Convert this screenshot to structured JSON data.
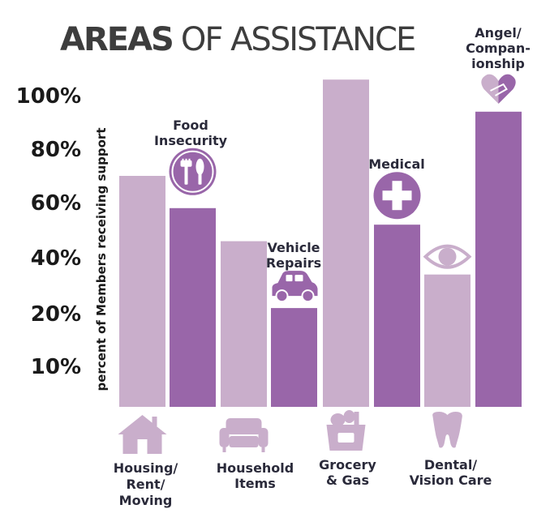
{
  "title": {
    "bold": "AREAS",
    "light": "OF ASSISTANCE"
  },
  "colors": {
    "light": "#c9aecb",
    "dark": "#9966a9",
    "text": "#2a2a3a"
  },
  "chart_data": {
    "type": "bar",
    "ylabel": "percent of Members receiving support",
    "yticks": [
      {
        "label": "10%",
        "value": 10
      },
      {
        "label": "20%",
        "value": 20
      },
      {
        "label": "40%",
        "value": 40
      },
      {
        "label": "60%",
        "value": 60
      },
      {
        "label": "80%",
        "value": 80
      },
      {
        "label": "100%",
        "value": 100
      }
    ],
    "bars": [
      {
        "value": 70,
        "shade": "light"
      },
      {
        "value": 58,
        "shade": "dark"
      },
      {
        "value": 46,
        "shade": "light"
      },
      {
        "value": 22,
        "shade": "dark"
      },
      {
        "value": 106,
        "shade": "light"
      },
      {
        "value": 52,
        "shade": "dark"
      },
      {
        "value": 34,
        "shade": "light"
      },
      {
        "value": 94,
        "shade": "dark"
      }
    ],
    "bottom_labels": [
      {
        "lines": [
          "Housing/",
          "Rent/",
          "Moving"
        ],
        "icon": "house-icon"
      },
      {
        "lines": [
          "Household",
          "Items"
        ],
        "icon": "sofa-icon"
      },
      {
        "lines": [
          "Grocery",
          "& Gas"
        ],
        "icon": "grocery-bag-icon"
      },
      {
        "lines": [
          "Dental/",
          "Vision Care"
        ],
        "icon": "tooth-icon"
      }
    ],
    "top_labels": [
      {
        "lines": [
          "Food",
          "Insecurity"
        ],
        "icon": "fork-knife-icon"
      },
      {
        "lines": [
          "Vehicle",
          "Repairs"
        ],
        "icon": "car-icon"
      },
      {
        "lines": [
          "Medical"
        ],
        "icon": "medical-cross-icon"
      },
      {
        "lines": [
          "Angel/",
          "Compan-",
          "ionship"
        ],
        "icon": "handshake-icon"
      }
    ]
  }
}
